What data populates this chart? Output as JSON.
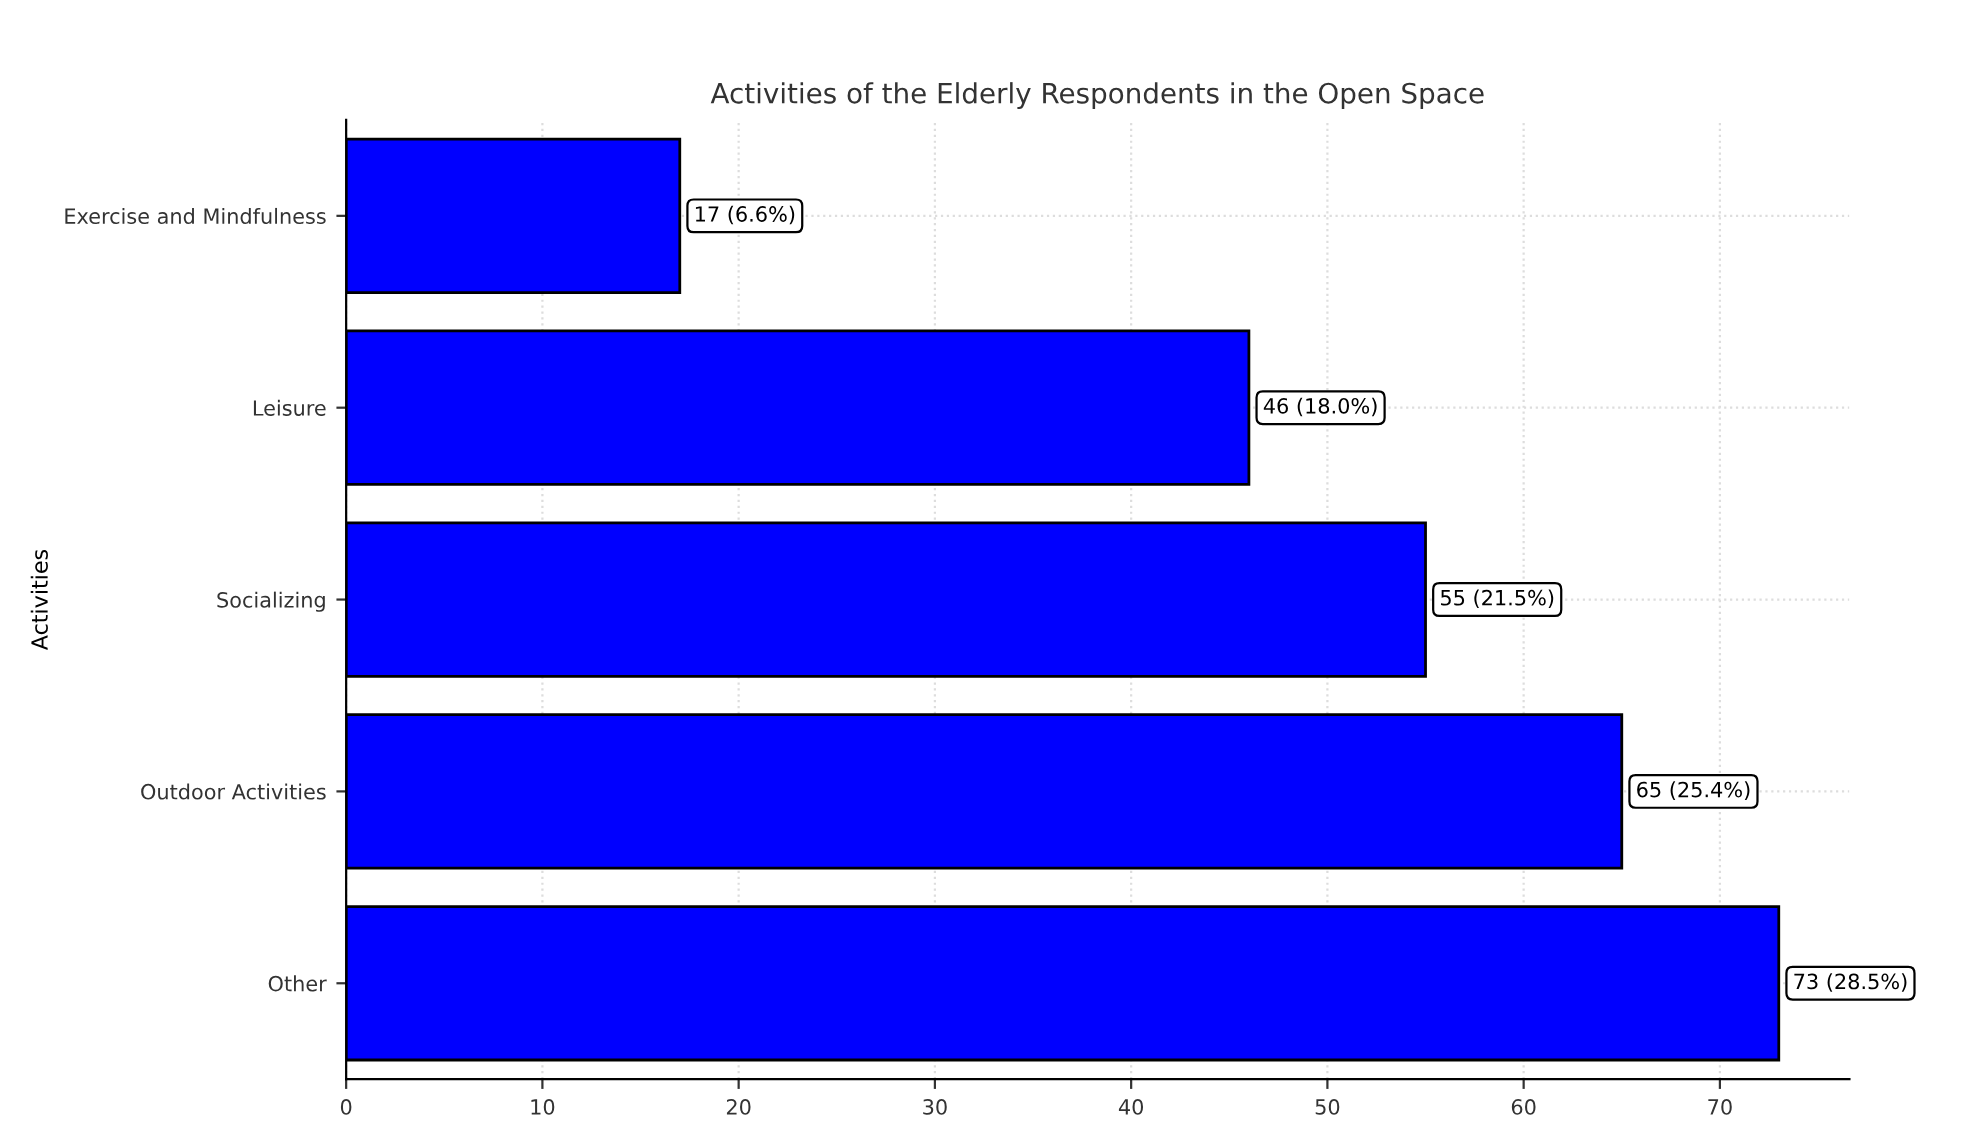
{
  "chart_data": {
    "type": "bar",
    "orientation": "horizontal",
    "title": "Activities of the Elderly Respondents in the Open Space",
    "ylabel": "Activities",
    "categories": [
      "Exercise and Mindfulness",
      "Leisure",
      "Socializing",
      "Outdoor Activities",
      "Other"
    ],
    "values": [
      17,
      46,
      55,
      65,
      73
    ],
    "color": "#0000ff",
    "value_labels": [
      "17 (6.6%)",
      "46 (18.0%)",
      "55 (21.5%)",
      "65 (25.4%)",
      "73 (28.5%)"
    ],
    "xlim": [
      0,
      76.6
    ],
    "xticks": [
      0,
      10,
      20,
      30,
      40,
      50,
      60,
      70
    ],
    "grid": true
  }
}
